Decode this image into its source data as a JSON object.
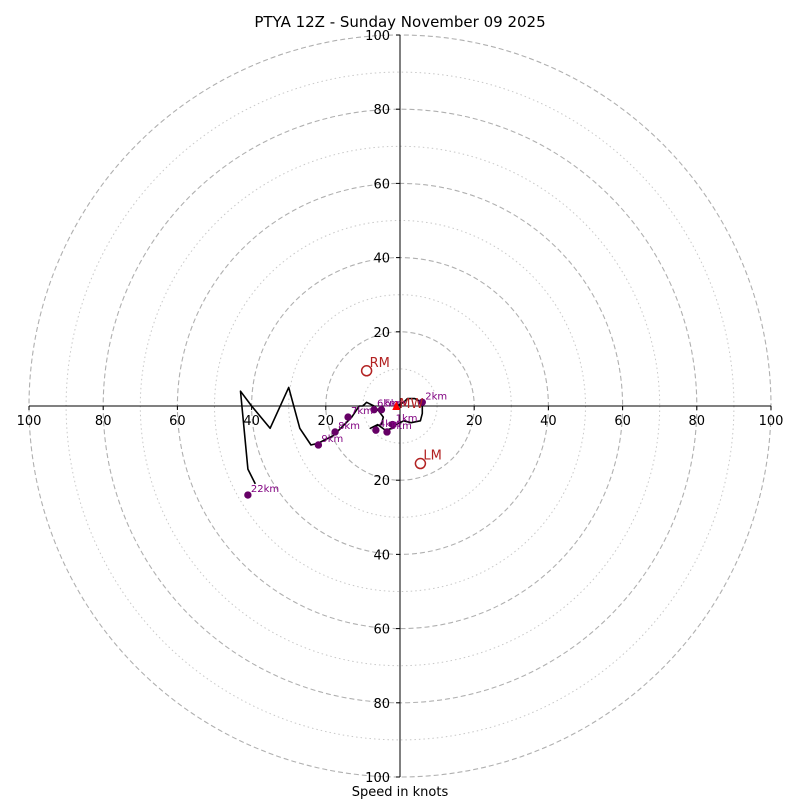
{
  "chart_data": {
    "type": "scatter",
    "title": "PTYA 12Z - Sunday November 09 2025",
    "xlabel": "Speed in knots",
    "ylabel": "",
    "xlim": [
      -100,
      100
    ],
    "ylim": [
      -100,
      100
    ],
    "major_rings": [
      20,
      40,
      60,
      80,
      100
    ],
    "minor_rings": [
      10,
      30,
      50,
      70,
      90
    ],
    "ring_tick_labels": [
      "20",
      "40",
      "60",
      "80",
      "100"
    ],
    "x_tick_labels_left": [
      "100",
      "80",
      "60",
      "40",
      "20"
    ],
    "x_tick_labels_right": [
      "20",
      "40",
      "60",
      "80",
      "100"
    ],
    "y_tick_labels_top": [
      "100",
      "80",
      "60",
      "40",
      "20"
    ],
    "y_tick_labels_bottom": [
      "20",
      "40",
      "60",
      "80",
      "100"
    ],
    "hodograph": {
      "name": "wind profile",
      "color": "#000000",
      "u": [
        -1,
        1,
        2,
        4,
        6,
        6,
        5.5,
        3,
        1,
        -1,
        -2,
        -4,
        -6,
        -8,
        -7,
        -5,
        -4.5,
        -6,
        -7,
        -9,
        -10,
        -11,
        -13,
        -15,
        -17,
        -18,
        -20,
        -22,
        -24,
        -27,
        -30,
        -35,
        -40,
        -43,
        -41,
        -39
      ],
      "v": [
        0,
        1,
        2,
        2,
        1,
        -2,
        -4,
        -4.5,
        -4,
        -5,
        -6,
        -6.5,
        -5,
        -6,
        -5.5,
        -5,
        -3,
        -1,
        0,
        1,
        0,
        0,
        -3,
        -5,
        -7,
        -8,
        -9,
        -10,
        -10.5,
        -6,
        5,
        -6,
        0,
        4,
        -17,
        -21
      ]
    },
    "height_markers": [
      {
        "label": "1km",
        "u": -2,
        "v": -5
      },
      {
        "label": "2km",
        "u": 6,
        "v": 1
      },
      {
        "label": "3km",
        "u": -3.5,
        "v": -7
      },
      {
        "label": "4km",
        "u": -6.5,
        "v": -6.5
      },
      {
        "label": "5km",
        "u": -5,
        "v": -1
      },
      {
        "label": "6km",
        "u": -7,
        "v": -1
      },
      {
        "label": "7km",
        "u": -14,
        "v": -3
      },
      {
        "label": "8km",
        "u": -17.5,
        "v": -7
      },
      {
        "label": "9km",
        "u": -22,
        "v": -10.5
      },
      {
        "label": "22km",
        "u": -41,
        "v": -24
      }
    ],
    "storm_motion": [
      {
        "label": "RM",
        "u": -9,
        "v": 9.5,
        "color": "#b22222"
      },
      {
        "label": "LM",
        "u": 5.5,
        "v": -15.5,
        "color": "#b22222"
      },
      {
        "label": "MW",
        "u": -1,
        "v": 0,
        "color": "#ff0000"
      }
    ],
    "grid": true,
    "legend": "none"
  }
}
